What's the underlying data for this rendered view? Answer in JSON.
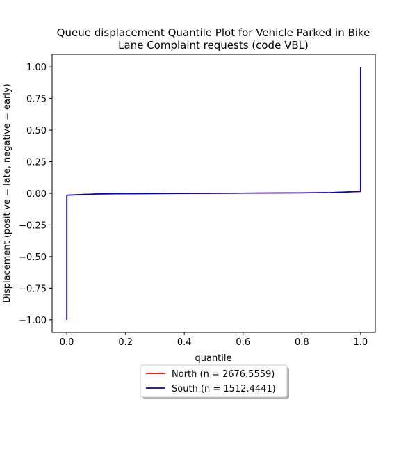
{
  "chart_data": {
    "type": "line",
    "title_lines": [
      "Queue displacement Quantile Plot for Vehicle Parked in Bike",
      "Lane Complaint  requests (code VBL)"
    ],
    "xlabel": "quantile",
    "ylabel": "Displacement (positive = late, negative = early)",
    "xlim": [
      -0.05,
      1.05
    ],
    "ylim": [
      -1.1,
      1.1
    ],
    "xticks": [
      0.0,
      0.2,
      0.4,
      0.6,
      0.8,
      1.0
    ],
    "xtick_labels": [
      "0.0",
      "0.2",
      "0.4",
      "0.6",
      "0.8",
      "1.0"
    ],
    "yticks": [
      -1.0,
      -0.75,
      -0.5,
      -0.25,
      0.0,
      0.25,
      0.5,
      0.75,
      1.0
    ],
    "ytick_labels": [
      "−1.00",
      "−0.75",
      "−0.50",
      "−0.25",
      "0.00",
      "0.25",
      "0.50",
      "0.75",
      "1.00"
    ],
    "grid": false,
    "legend_position": "below-center",
    "series": [
      {
        "name": "North (n = 2676.5559)",
        "color": "#ff0000",
        "x": [
          0.0,
          0.0,
          0.1,
          0.2,
          0.5,
          0.8,
          0.9,
          1.0,
          1.0
        ],
        "y": [
          -1.0,
          -0.015,
          -0.005,
          -0.003,
          0.0,
          0.004,
          0.006,
          0.015,
          1.0
        ]
      },
      {
        "name": "South (n = 1512.4441)",
        "color": "#0000cc",
        "x": [
          0.0,
          0.0,
          0.1,
          0.2,
          0.5,
          0.8,
          0.9,
          1.0,
          1.0
        ],
        "y": [
          -1.0,
          -0.015,
          -0.005,
          -0.003,
          0.0,
          0.004,
          0.006,
          0.015,
          1.0
        ]
      }
    ]
  }
}
